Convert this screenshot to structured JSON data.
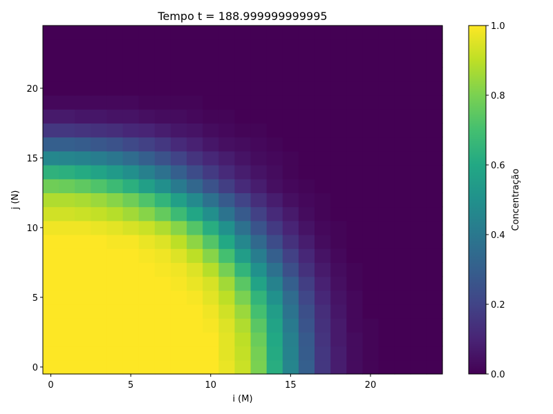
{
  "chart_data": {
    "type": "heatmap",
    "title": "Tempo t = 188.999999999995",
    "xlabel": "i (M)",
    "ylabel": "j (N)",
    "colorbar_label": "Concentração",
    "grid": false,
    "colormap": "viridis",
    "x_range": [
      -0.5,
      24.5
    ],
    "y_range": [
      -0.5,
      24.5
    ],
    "x_ticks": [
      "0",
      "5",
      "10",
      "15",
      "20"
    ],
    "y_ticks": [
      "0",
      "5",
      "10",
      "15",
      "20"
    ],
    "colorbar_range": [
      0.0,
      1.0
    ],
    "colorbar_ticks": [
      "0.0",
      "0.2",
      "0.4",
      "0.6",
      "0.8",
      "1.0"
    ],
    "grid_size": [
      25,
      25
    ],
    "z": [
      [
        1.0,
        1.0,
        1.0,
        1.0,
        1.0,
        1.0,
        1.0,
        1.0,
        1.0,
        1.0,
        1.0,
        0.97,
        0.92,
        0.8,
        0.62,
        0.45,
        0.3,
        0.16,
        0.08,
        0.03,
        0.01,
        0.0,
        0.0,
        0.0,
        0.0
      ],
      [
        1.0,
        1.0,
        1.0,
        1.0,
        1.0,
        1.0,
        1.0,
        1.0,
        1.0,
        1.0,
        1.0,
        0.96,
        0.91,
        0.79,
        0.61,
        0.44,
        0.29,
        0.16,
        0.08,
        0.03,
        0.01,
        0.0,
        0.0,
        0.0,
        0.0
      ],
      [
        1.0,
        1.0,
        1.0,
        1.0,
        1.0,
        1.0,
        1.0,
        1.0,
        1.0,
        1.0,
        1.0,
        0.96,
        0.9,
        0.77,
        0.6,
        0.43,
        0.28,
        0.15,
        0.07,
        0.03,
        0.01,
        0.0,
        0.0,
        0.0,
        0.0
      ],
      [
        1.0,
        1.0,
        1.0,
        1.0,
        1.0,
        1.0,
        1.0,
        1.0,
        1.0,
        1.0,
        0.99,
        0.95,
        0.88,
        0.74,
        0.58,
        0.41,
        0.26,
        0.14,
        0.07,
        0.02,
        0.01,
        0.0,
        0.0,
        0.0,
        0.0
      ],
      [
        1.0,
        1.0,
        1.0,
        1.0,
        1.0,
        1.0,
        1.0,
        1.0,
        1.0,
        1.0,
        0.98,
        0.93,
        0.85,
        0.7,
        0.55,
        0.38,
        0.24,
        0.13,
        0.06,
        0.02,
        0.0,
        0.0,
        0.0,
        0.0,
        0.0
      ],
      [
        1.0,
        1.0,
        1.0,
        1.0,
        1.0,
        1.0,
        1.0,
        1.0,
        1.0,
        0.99,
        0.96,
        0.9,
        0.8,
        0.65,
        0.5,
        0.35,
        0.21,
        0.11,
        0.05,
        0.02,
        0.0,
        0.0,
        0.0,
        0.0,
        0.0
      ],
      [
        1.0,
        1.0,
        1.0,
        1.0,
        1.0,
        1.0,
        1.0,
        1.0,
        0.99,
        0.97,
        0.94,
        0.86,
        0.74,
        0.58,
        0.44,
        0.3,
        0.18,
        0.09,
        0.04,
        0.01,
        0.0,
        0.0,
        0.0,
        0.0,
        0.0
      ],
      [
        1.0,
        1.0,
        1.0,
        1.0,
        1.0,
        1.0,
        1.0,
        0.99,
        0.98,
        0.95,
        0.89,
        0.79,
        0.65,
        0.5,
        0.37,
        0.24,
        0.14,
        0.07,
        0.03,
        0.01,
        0.0,
        0.0,
        0.0,
        0.0,
        0.0
      ],
      [
        1.0,
        1.0,
        1.0,
        1.0,
        1.0,
        1.0,
        0.99,
        0.98,
        0.95,
        0.9,
        0.82,
        0.7,
        0.55,
        0.42,
        0.3,
        0.19,
        0.11,
        0.05,
        0.02,
        0.0,
        0.0,
        0.0,
        0.0,
        0.0,
        0.0
      ],
      [
        1.0,
        1.0,
        1.0,
        1.0,
        0.99,
        0.99,
        0.97,
        0.95,
        0.9,
        0.83,
        0.73,
        0.6,
        0.46,
        0.34,
        0.23,
        0.14,
        0.08,
        0.03,
        0.01,
        0.0,
        0.0,
        0.0,
        0.0,
        0.0,
        0.0
      ],
      [
        0.98,
        0.98,
        0.98,
        0.97,
        0.96,
        0.94,
        0.92,
        0.88,
        0.82,
        0.73,
        0.62,
        0.5,
        0.37,
        0.26,
        0.17,
        0.1,
        0.05,
        0.02,
        0.01,
        0.0,
        0.0,
        0.0,
        0.0,
        0.0,
        0.0
      ],
      [
        0.93,
        0.93,
        0.92,
        0.91,
        0.89,
        0.86,
        0.82,
        0.76,
        0.68,
        0.59,
        0.49,
        0.38,
        0.28,
        0.19,
        0.12,
        0.07,
        0.03,
        0.01,
        0.0,
        0.0,
        0.0,
        0.0,
        0.0,
        0.0,
        0.0
      ],
      [
        0.88,
        0.88,
        0.87,
        0.85,
        0.82,
        0.78,
        0.72,
        0.65,
        0.56,
        0.47,
        0.37,
        0.28,
        0.2,
        0.13,
        0.08,
        0.04,
        0.02,
        0.01,
        0.0,
        0.0,
        0.0,
        0.0,
        0.0,
        0.0,
        0.0
      ],
      [
        0.78,
        0.77,
        0.75,
        0.72,
        0.68,
        0.63,
        0.56,
        0.49,
        0.41,
        0.33,
        0.25,
        0.18,
        0.12,
        0.08,
        0.04,
        0.02,
        0.01,
        0.0,
        0.0,
        0.0,
        0.0,
        0.0,
        0.0,
        0.0,
        0.0
      ],
      [
        0.64,
        0.63,
        0.61,
        0.58,
        0.54,
        0.49,
        0.43,
        0.37,
        0.3,
        0.23,
        0.17,
        0.12,
        0.08,
        0.05,
        0.03,
        0.01,
        0.0,
        0.0,
        0.0,
        0.0,
        0.0,
        0.0,
        0.0,
        0.0,
        0.0
      ],
      [
        0.46,
        0.45,
        0.44,
        0.42,
        0.39,
        0.35,
        0.3,
        0.25,
        0.2,
        0.15,
        0.11,
        0.08,
        0.05,
        0.03,
        0.02,
        0.01,
        0.0,
        0.0,
        0.0,
        0.0,
        0.0,
        0.0,
        0.0,
        0.0,
        0.0
      ],
      [
        0.3,
        0.3,
        0.29,
        0.27,
        0.25,
        0.22,
        0.19,
        0.16,
        0.12,
        0.09,
        0.06,
        0.04,
        0.03,
        0.02,
        0.01,
        0.0,
        0.0,
        0.0,
        0.0,
        0.0,
        0.0,
        0.0,
        0.0,
        0.0,
        0.0
      ],
      [
        0.16,
        0.16,
        0.15,
        0.14,
        0.13,
        0.11,
        0.1,
        0.08,
        0.06,
        0.05,
        0.03,
        0.02,
        0.01,
        0.01,
        0.0,
        0.0,
        0.0,
        0.0,
        0.0,
        0.0,
        0.0,
        0.0,
        0.0,
        0.0,
        0.0
      ],
      [
        0.07,
        0.07,
        0.06,
        0.06,
        0.05,
        0.05,
        0.04,
        0.03,
        0.03,
        0.02,
        0.01,
        0.01,
        0.0,
        0.0,
        0.0,
        0.0,
        0.0,
        0.0,
        0.0,
        0.0,
        0.0,
        0.0,
        0.0,
        0.0,
        0.0
      ],
      [
        0.02,
        0.02,
        0.02,
        0.02,
        0.02,
        0.02,
        0.01,
        0.01,
        0.01,
        0.01,
        0.0,
        0.0,
        0.0,
        0.0,
        0.0,
        0.0,
        0.0,
        0.0,
        0.0,
        0.0,
        0.0,
        0.0,
        0.0,
        0.0,
        0.0
      ],
      [
        0.0,
        0.0,
        0.0,
        0.0,
        0.0,
        0.0,
        0.0,
        0.0,
        0.0,
        0.0,
        0.0,
        0.0,
        0.0,
        0.0,
        0.0,
        0.0,
        0.0,
        0.0,
        0.0,
        0.0,
        0.0,
        0.0,
        0.0,
        0.0,
        0.0
      ],
      [
        0.0,
        0.0,
        0.0,
        0.0,
        0.0,
        0.0,
        0.0,
        0.0,
        0.0,
        0.0,
        0.0,
        0.0,
        0.0,
        0.0,
        0.0,
        0.0,
        0.0,
        0.0,
        0.0,
        0.0,
        0.0,
        0.0,
        0.0,
        0.0,
        0.0
      ],
      [
        0.0,
        0.0,
        0.0,
        0.0,
        0.0,
        0.0,
        0.0,
        0.0,
        0.0,
        0.0,
        0.0,
        0.0,
        0.0,
        0.0,
        0.0,
        0.0,
        0.0,
        0.0,
        0.0,
        0.0,
        0.0,
        0.0,
        0.0,
        0.0,
        0.0
      ],
      [
        0.0,
        0.0,
        0.0,
        0.0,
        0.0,
        0.0,
        0.0,
        0.0,
        0.0,
        0.0,
        0.0,
        0.0,
        0.0,
        0.0,
        0.0,
        0.0,
        0.0,
        0.0,
        0.0,
        0.0,
        0.0,
        0.0,
        0.0,
        0.0,
        0.0
      ],
      [
        0.0,
        0.0,
        0.0,
        0.0,
        0.0,
        0.0,
        0.0,
        0.0,
        0.0,
        0.0,
        0.0,
        0.0,
        0.0,
        0.0,
        0.0,
        0.0,
        0.0,
        0.0,
        0.0,
        0.0,
        0.0,
        0.0,
        0.0,
        0.0,
        0.0
      ]
    ]
  }
}
